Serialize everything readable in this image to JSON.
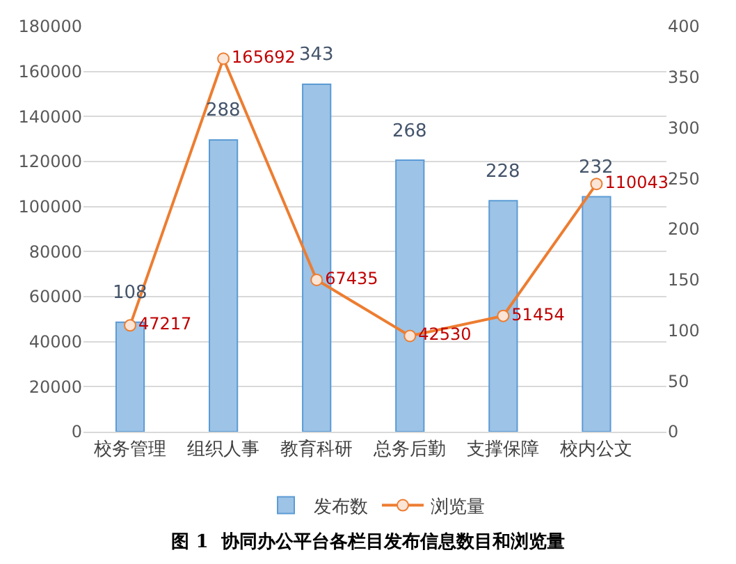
{
  "chart_data": {
    "type": "bar",
    "title": "图 1  协同办公平台各栏目发布信息数目和浏览量",
    "categories": [
      "校务管理",
      "组织人事",
      "教育科研",
      "总务后勤",
      "支撑保障",
      "校内公文"
    ],
    "series": [
      {
        "name": "发布数",
        "type": "bar",
        "axis": "y2",
        "color": "#9dc3e6",
        "values": [
          108,
          288,
          343,
          268,
          228,
          232
        ]
      },
      {
        "name": "浏览量",
        "type": "line",
        "color": "#ed7d31",
        "marker": "circle",
        "values": [
          47217,
          165692,
          67435,
          42530,
          51454,
          110043
        ]
      }
    ],
    "ylim": [
      0,
      180000
    ],
    "yticks": [
      0,
      20000,
      40000,
      60000,
      80000,
      100000,
      120000,
      140000,
      160000,
      180000
    ],
    "y2lim": [
      0,
      400
    ],
    "y2ticks": [
      0,
      50,
      100,
      150,
      200,
      250,
      300,
      350,
      400
    ],
    "data_labels": true,
    "grid": "y",
    "legend": "bottom"
  }
}
